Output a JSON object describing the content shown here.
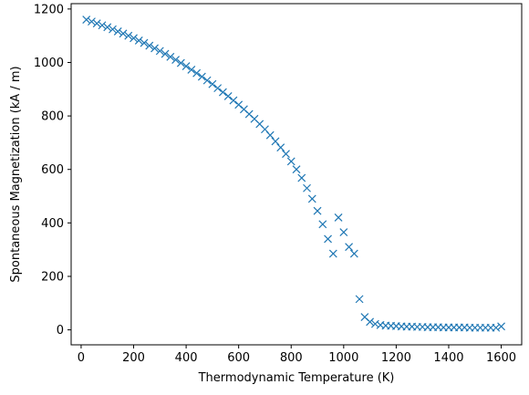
{
  "chart_data": {
    "type": "scatter",
    "marker": "x",
    "marker_color": "#1f77b4",
    "xlabel": "Thermodynamic Temperature (K)",
    "ylabel": "Spontaneous Magnetization (kA / m)",
    "xlim": [
      -38,
      1678
    ],
    "ylim": [
      -56,
      1220
    ],
    "xticks": [
      0,
      200,
      400,
      600,
      800,
      1000,
      1200,
      1400,
      1600
    ],
    "yticks": [
      0,
      200,
      400,
      600,
      800,
      1000,
      1200
    ],
    "grid": false,
    "series": [
      {
        "x": [
          20,
          40,
          60,
          80,
          100,
          120,
          140,
          160,
          180,
          200,
          220,
          240,
          260,
          280,
          300,
          320,
          340,
          360,
          380,
          400,
          420,
          440,
          460,
          480,
          500,
          520,
          540,
          560,
          580,
          600,
          620,
          640,
          660,
          680,
          700,
          720,
          740,
          760,
          780,
          800,
          820,
          840,
          860,
          880,
          900,
          920,
          940,
          960,
          980,
          1000,
          1020,
          1040,
          1060,
          1080,
          1100,
          1120,
          1140,
          1160,
          1180,
          1200,
          1220,
          1240,
          1260,
          1280,
          1300,
          1320,
          1340,
          1360,
          1380,
          1400,
          1420,
          1440,
          1460,
          1480,
          1500,
          1520,
          1540,
          1560,
          1580,
          1600
        ],
        "values": [
          1160,
          1153,
          1146,
          1139,
          1132,
          1124,
          1116,
          1108,
          1100,
          1091,
          1082,
          1073,
          1063,
          1053,
          1043,
          1032,
          1021,
          1010,
          998,
          986,
          973,
          960,
          947,
          933,
          919,
          904,
          889,
          874,
          858,
          842,
          825,
          807,
          789,
          770,
          750,
          728,
          705,
          682,
          658,
          630,
          600,
          568,
          530,
          490,
          445,
          395,
          340,
          285,
          420,
          365,
          310,
          285,
          115,
          48,
          30,
          22,
          18,
          16,
          15,
          14,
          13,
          12,
          12,
          11,
          11,
          10,
          10,
          10,
          9,
          9,
          9,
          9,
          9,
          8,
          8,
          8,
          8,
          8,
          8,
          13
        ]
      }
    ]
  }
}
